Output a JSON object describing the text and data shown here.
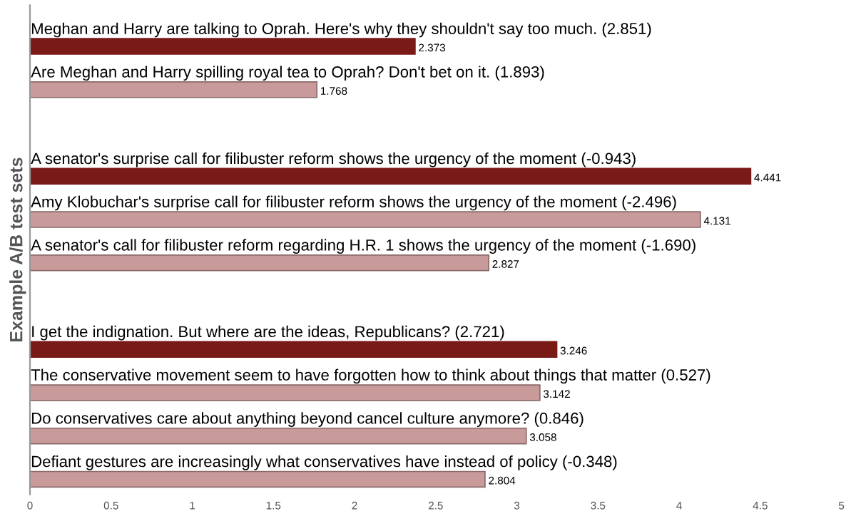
{
  "chart_data": {
    "type": "bar",
    "orientation": "horizontal",
    "ylabel": "Example A/B test sets",
    "categories": [
      "Meghan and Harry are talking to Oprah. Here's why they shouldn't say too much. (2.851)",
      "Are Meghan and Harry spilling royal tea to Oprah? Don't bet on it. (1.893)",
      null,
      "A senator's surprise call for filibuster reform shows the urgency of the moment (-0.943)",
      "Amy Klobuchar's surprise call for filibuster reform shows the urgency of the moment (-2.496)",
      "A senator's call for filibuster reform regarding H.R. 1 shows the urgency of the moment (-1.690)",
      null,
      "I get the indignation. But where are the ideas, Republicans? (2.721)",
      "The conservative movement seem to have forgotten how to think about things that matter (0.527)",
      "Do conservatives care about anything beyond cancel culture anymore? (0.846)",
      "Defiant gestures are increasingly what conservatives have instead of policy (-0.348)"
    ],
    "values": [
      2.373,
      1.768,
      null,
      4.441,
      4.131,
      2.827,
      null,
      3.246,
      3.142,
      3.058,
      2.804
    ],
    "colors": [
      "#7a1a17",
      "#c99a9a",
      null,
      "#7a1a17",
      "#c99a9a",
      "#c99a9a",
      null,
      "#7a1a17",
      "#c99a9a",
      "#c99a9a",
      "#c99a9a"
    ],
    "data_labels": true,
    "xlim": [
      0,
      5
    ],
    "xticks": [
      0,
      0.5,
      1,
      1.5,
      2,
      2.5,
      3,
      3.5,
      4,
      4.5,
      5
    ],
    "grid": false,
    "legend": false
  }
}
